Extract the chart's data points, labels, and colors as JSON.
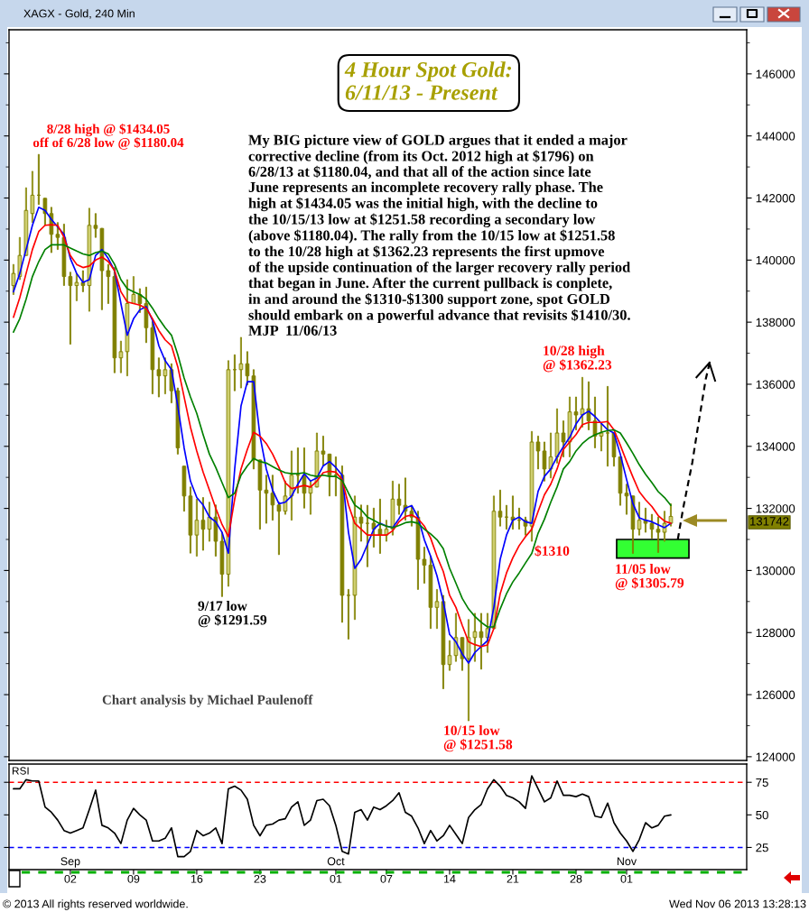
{
  "chart_data": [
    {
      "type": "candlestick",
      "title": "4 Hour Spot Gold:\n6/11/13 - Present",
      "subtitle": "XAGX - Gold, 240 Min",
      "categories": [
        null,
        null,
        null,
        null,
        null,
        null,
        null,
        null,
        null,
        "Sep",
        null,
        null,
        null,
        null,
        null,
        null,
        null,
        null,
        null,
        null,
        null,
        null,
        null,
        null,
        null,
        null,
        null,
        null,
        null,
        null,
        null,
        null,
        null,
        null,
        null,
        null,
        null,
        null,
        null,
        null,
        null,
        null,
        null,
        null,
        null,
        null,
        null,
        null,
        null,
        null,
        null,
        "Oct",
        null,
        null,
        null,
        null,
        null,
        null,
        null,
        null,
        null,
        null,
        null,
        null,
        null,
        null,
        null,
        null,
        null,
        null,
        null,
        null,
        null,
        null,
        null,
        null,
        null,
        null,
        null,
        null,
        null,
        null,
        null,
        null,
        null,
        null,
        null,
        null,
        null,
        null,
        null,
        null,
        null,
        null,
        null,
        null,
        null,
        "Nov",
        null,
        null,
        null,
        null,
        null,
        null,
        null,
        null,
        null,
        null,
        null,
        null,
        null,
        null,
        null,
        null,
        null,
        null,
        null
      ],
      "ohlc": [
        [
          139180,
          139860,
          138890,
          139570
        ],
        [
          139470,
          140730,
          139370,
          140150
        ],
        [
          140150,
          142330,
          140150,
          141600
        ],
        [
          141500,
          142860,
          141210,
          142090
        ],
        [
          142090,
          143405,
          141790,
          142090
        ],
        [
          141990,
          141990,
          141120,
          141500
        ],
        [
          141500,
          141700,
          140240,
          140830
        ],
        [
          140830,
          141210,
          140340,
          140730
        ],
        [
          140730,
          141160,
          139180,
          139470
        ],
        [
          139470,
          139610,
          137290,
          139180
        ],
        [
          139180,
          139570,
          138690,
          139280
        ],
        [
          139280,
          139660,
          138980,
          139180
        ],
        [
          139180,
          141670,
          138350,
          141120
        ],
        [
          141120,
          141500,
          140730,
          141020
        ],
        [
          141020,
          141020,
          138400,
          139660
        ],
        [
          139660,
          139860,
          138600,
          139470
        ],
        [
          139470,
          139760,
          136370,
          136850
        ],
        [
          136850,
          137390,
          136370,
          137050
        ],
        [
          137050,
          139370,
          136270,
          138600
        ],
        [
          138600,
          139470,
          138600,
          138890
        ],
        [
          138890,
          139080,
          138310,
          138600
        ],
        [
          138600,
          139130,
          137340,
          137820
        ],
        [
          137820,
          138020,
          135690,
          136470
        ],
        [
          136470,
          136850,
          135590,
          136270
        ],
        [
          136270,
          136850,
          135690,
          136470
        ],
        [
          136470,
          136660,
          135400,
          135790
        ],
        [
          135790,
          135880,
          133750,
          133950
        ],
        [
          133360,
          133360,
          131910,
          132400
        ],
        [
          132400,
          132690,
          130560,
          131140
        ],
        [
          131140,
          132300,
          130460,
          131620
        ],
        [
          131620,
          132350,
          130650,
          131330
        ],
        [
          131330,
          132200,
          130940,
          131720
        ],
        [
          131720,
          132110,
          130460,
          130940
        ],
        [
          130940,
          131230,
          129159,
          129880
        ],
        [
          129880,
          136760,
          129490,
          136470
        ],
        [
          136470,
          136950,
          135790,
          136470
        ],
        [
          136470,
          137510,
          135880,
          136660
        ],
        [
          136660,
          137050,
          135980,
          136270
        ],
        [
          136270,
          136470,
          133270,
          133560
        ],
        [
          133560,
          133560,
          131330,
          132590
        ],
        [
          132590,
          133070,
          131520,
          132490
        ],
        [
          132490,
          133070,
          131620,
          132110
        ],
        [
          132110,
          132200,
          130510,
          131910
        ],
        [
          131910,
          132880,
          131810,
          132400
        ],
        [
          132400,
          133850,
          131620,
          133070
        ],
        [
          133070,
          133950,
          132490,
          133070
        ],
        [
          133070,
          133950,
          132010,
          132490
        ],
        [
          132490,
          132880,
          131810,
          132690
        ],
        [
          132690,
          134430,
          132690,
          133850
        ],
        [
          133850,
          134330,
          133370,
          133750
        ],
        [
          133750,
          133750,
          132400,
          133070
        ],
        [
          133070,
          133660,
          132400,
          133070
        ],
        [
          133070,
          133370,
          128330,
          129200
        ],
        [
          129200,
          129390,
          127790,
          129200
        ],
        [
          129200,
          132400,
          128420,
          131720
        ],
        [
          131720,
          132110,
          130940,
          131520
        ],
        [
          131520,
          132100,
          130120,
          131520
        ],
        [
          131520,
          132010,
          130750,
          131330
        ],
        [
          131330,
          132300,
          130550,
          131140
        ],
        [
          131140,
          131620,
          130940,
          131330
        ],
        [
          131330,
          132880,
          131140,
          132300
        ],
        [
          132300,
          132780,
          131810,
          132100
        ],
        [
          132100,
          132980,
          131620,
          131910
        ],
        [
          131910,
          132100,
          131430,
          131720
        ],
        [
          131720,
          131910,
          129390,
          130360
        ],
        [
          130360,
          130750,
          129590,
          130170
        ],
        [
          130170,
          130460,
          128130,
          128810
        ],
        [
          128810,
          129390,
          128130,
          129000
        ],
        [
          129000,
          129200,
          126190,
          126970
        ],
        [
          126970,
          127740,
          126780,
          127260
        ],
        [
          127260,
          128620,
          127070,
          127840
        ],
        [
          127840,
          127840,
          126780,
          127160
        ],
        [
          127160,
          128420,
          125158,
          127840
        ],
        [
          127840,
          128620,
          127070,
          128030
        ],
        [
          128030,
          128620,
          126820,
          127840
        ],
        [
          127840,
          128620,
          127360,
          128130
        ],
        [
          128130,
          132400,
          128130,
          131910
        ],
        [
          131910,
          132590,
          131430,
          131720
        ],
        [
          131720,
          132100,
          131330,
          131720
        ],
        [
          131720,
          132400,
          131330,
          131620
        ],
        [
          131620,
          132010,
          131330,
          131620
        ],
        [
          131620,
          131720,
          131140,
          131430
        ],
        [
          131430,
          134480,
          130940,
          134140
        ],
        [
          134140,
          134330,
          133270,
          133850
        ],
        [
          133850,
          134140,
          132880,
          133270
        ],
        [
          133270,
          134430,
          132980,
          133660
        ],
        [
          133660,
          135210,
          133460,
          134430
        ],
        [
          134430,
          134820,
          133660,
          134140
        ],
        [
          134140,
          135590,
          133660,
          135110
        ],
        [
          135110,
          135590,
          134530,
          135010
        ],
        [
          135010,
          136223,
          134620,
          135210
        ],
        [
          135210,
          136080,
          134530,
          134820
        ],
        [
          134820,
          135590,
          133950,
          134330
        ],
        [
          134330,
          134720,
          133850,
          134430
        ],
        [
          134430,
          135930,
          133360,
          134430
        ],
        [
          134430,
          134430,
          133360,
          133660
        ],
        [
          133660,
          133660,
          132100,
          132490
        ],
        [
          132490,
          132780,
          131810,
          132400
        ],
        [
          132400,
          132400,
          130550,
          131330
        ],
        [
          131330,
          132200,
          131140,
          131620
        ],
        [
          131620,
          132010,
          131230,
          131520
        ],
        [
          131520,
          131810,
          131040,
          131330
        ],
        [
          131330,
          131720,
          130579,
          131230
        ],
        [
          131230,
          131910,
          130940,
          131520
        ],
        [
          131520,
          132150,
          131430,
          131742
        ],
        null,
        null,
        null,
        null,
        null,
        null,
        null,
        null,
        null,
        null,
        null,
        null
      ],
      "color": "#808000",
      "series": [
        {
          "type": "line",
          "color": "#0000ff",
          "values": [
            138980,
            139570,
            140340,
            141120,
            141700,
            141600,
            141310,
            141070,
            140830,
            140050,
            139570,
            139280,
            139370,
            140150,
            140340,
            140050,
            139660,
            138600,
            137580,
            138110,
            138400,
            138500,
            138060,
            137240,
            136760,
            136470,
            135300,
            133950,
            132880,
            132350,
            132110,
            131720,
            131570,
            131230,
            130560,
            133270,
            135300,
            136080,
            136080,
            134330,
            133270,
            132590,
            132150,
            132200,
            132400,
            132780,
            133120,
            132880,
            132980,
            133370,
            133510,
            133320,
            133070,
            131230,
            130070,
            130360,
            130840,
            131330,
            131520,
            131430,
            131380,
            131670,
            132010,
            132090,
            131720,
            130990,
            130460,
            129830,
            129000,
            127940,
            127700,
            127310,
            127020,
            127360,
            127550,
            127740,
            128810,
            130360,
            131140,
            131620,
            131720,
            131570,
            131520,
            132550,
            133030,
            133270,
            133660,
            133990,
            134290,
            134720,
            135010,
            135130,
            134960,
            134740,
            134530,
            134430,
            133750,
            132930,
            132150,
            131700,
            131620,
            131570,
            131470,
            131380,
            131520,
            null,
            null,
            null,
            null,
            null,
            null,
            null,
            null,
            null,
            null,
            null,
            null
          ]
        },
        {
          "type": "line",
          "color": "#ff0000",
          "values": [
            138160,
            138790,
            139570,
            140340,
            140920,
            141120,
            141140,
            141120,
            140730,
            140150,
            139860,
            139760,
            139810,
            140000,
            140100,
            139950,
            139660,
            138980,
            138650,
            138600,
            138550,
            138450,
            138110,
            137730,
            137430,
            137240,
            136560,
            135590,
            134620,
            133850,
            133170,
            132590,
            132010,
            131480,
            131090,
            132300,
            133270,
            133900,
            134450,
            134330,
            134090,
            133750,
            133320,
            132830,
            132640,
            132690,
            132740,
            132690,
            132880,
            133150,
            133200,
            133170,
            132930,
            132110,
            131520,
            131330,
            131140,
            131140,
            131140,
            131140,
            131280,
            131570,
            131740,
            131790,
            131670,
            131430,
            131040,
            130460,
            129970,
            129200,
            128810,
            128230,
            127700,
            127610,
            127550,
            127600,
            128130,
            129250,
            129920,
            130410,
            130800,
            131090,
            131330,
            131900,
            132440,
            132780,
            133270,
            133900,
            134140,
            134380,
            134700,
            134770,
            134770,
            134770,
            134800,
            134530,
            134040,
            133510,
            133010,
            132540,
            132280,
            132060,
            131770,
            131590,
            131520,
            null,
            null,
            null,
            null,
            null,
            null,
            null,
            null,
            null,
            null,
            null,
            null
          ]
        },
        {
          "type": "line",
          "color": "#008000",
          "values": [
            137680,
            138110,
            138740,
            139470,
            139950,
            140340,
            140490,
            140490,
            140490,
            140390,
            140290,
            140200,
            140150,
            140240,
            140290,
            140200,
            139860,
            139370,
            139080,
            138980,
            138890,
            138740,
            138450,
            138110,
            137820,
            137580,
            136950,
            136200,
            135590,
            135060,
            134380,
            133750,
            133320,
            132830,
            132350,
            132490,
            133070,
            133370,
            133610,
            133510,
            133460,
            133350,
            133240,
            133150,
            133120,
            133120,
            133150,
            133070,
            133030,
            133070,
            133030,
            133030,
            132900,
            132490,
            132110,
            131960,
            131720,
            131620,
            131500,
            131430,
            131380,
            131450,
            131540,
            131570,
            131520,
            131330,
            131180,
            130990,
            130700,
            130070,
            129590,
            129100,
            128760,
            128520,
            128330,
            128180,
            128180,
            128760,
            129250,
            129630,
            129920,
            130240,
            130550,
            131200,
            131650,
            132200,
            132690,
            133270,
            133510,
            133850,
            134090,
            134260,
            134370,
            134450,
            134510,
            134530,
            134430,
            134110,
            133770,
            133410,
            133100,
            132830,
            132540,
            132350,
            132100,
            null,
            null,
            null,
            null,
            null,
            null,
            null,
            null,
            null,
            null,
            null,
            null
          ]
        }
      ],
      "ylim": [
        123880,
        147420
      ],
      "yticks": [
        124000,
        126000,
        128000,
        130000,
        132000,
        134000,
        136000,
        138000,
        140000,
        142000,
        144000,
        146000
      ],
      "bands": [
        {
          "axis": "y",
          "from": 130400,
          "to": 131000,
          "color": "#33ff33"
        }
      ],
      "annotations": [
        "8/28 high @ $1434.05\noff of 6/28 low @ $1180.04",
        "My BIG picture view of GOLD argues that it ended a major\ncorrective decline (from its Oct. 2012 high at $1796) on\n6/28/13 at $1180.04, and that all of the action since late\nJune represents an incomplete recovery rally phase. The\nhigh at $1434.05 was the initial high, with the decline to\nthe 10/15/13 low at $1251.58 recording a secondary low\n(above $1180.04). The rally from the 10/15 low at $1251.58\nto the 10/28 high at $1362.23 represents the first upmove\nof the upside continuation of the larger recovery rally period\nthat began in June. After the current pullback is conplete,\nin and around the $1310-$1300 support zone, spot GOLD\nshould embark on a powerful advance that revisits $1410/30.\nMJP  11/06/13",
        "10/28 high\n@ $1362.23",
        "$1310",
        "11/05 low\n@ $1305.79",
        "9/17 low\n@ $1291.59",
        "10/15 low\n@ $1251.58",
        "Chart analysis by Michael Paulenoff",
        "131742",
        "© 2013 All rights reserved worldwide.",
        "Wed Nov 06 2013 13:28:13"
      ]
    },
    {
      "type": "line",
      "title": "RSI",
      "categories": [
        null,
        null,
        null,
        null,
        null,
        null,
        null,
        null,
        null,
        "02",
        null,
        null,
        null,
        null,
        null,
        null,
        null,
        null,
        null,
        "09",
        null,
        null,
        null,
        null,
        null,
        null,
        null,
        null,
        null,
        "16",
        null,
        null,
        null,
        null,
        null,
        null,
        null,
        null,
        null,
        "23",
        null,
        null,
        null,
        null,
        null,
        null,
        null,
        null,
        null,
        null,
        null,
        "01",
        null,
        null,
        null,
        null,
        null,
        null,
        null,
        "07",
        null,
        null,
        null,
        null,
        null,
        null,
        null,
        null,
        null,
        "14",
        null,
        null,
        null,
        null,
        null,
        null,
        null,
        null,
        null,
        "21",
        null,
        null,
        null,
        null,
        null,
        null,
        null,
        null,
        null,
        "28",
        null,
        null,
        null,
        null,
        null,
        null,
        null,
        "01",
        null,
        null,
        null,
        null,
        null,
        null,
        null,
        null,
        null,
        null,
        null,
        null,
        null,
        null,
        null,
        null,
        null,
        null,
        null
      ],
      "series": [
        {
          "color": "#000000",
          "values": [
            70,
            70,
            77,
            76,
            76,
            56,
            52,
            46,
            38,
            36,
            38,
            40,
            54,
            69,
            42,
            40,
            36,
            28,
            46,
            55,
            50,
            46,
            30,
            30,
            32,
            40,
            18,
            18,
            22,
            38,
            34,
            36,
            40,
            28,
            70,
            72,
            69,
            62,
            42,
            34,
            42,
            43,
            46,
            47,
            56,
            60,
            42,
            46,
            61,
            62,
            57,
            42,
            22,
            20,
            52,
            54,
            46,
            56,
            54,
            57,
            61,
            67,
            52,
            49,
            40,
            28,
            38,
            30,
            34,
            42,
            35,
            28,
            48,
            54,
            58,
            70,
            77,
            72,
            65,
            63,
            60,
            55,
            80,
            70,
            60,
            63,
            76,
            65,
            65,
            64,
            66,
            64,
            49,
            48,
            59,
            44,
            36,
            30,
            22,
            31,
            44,
            40,
            42,
            49,
            50,
            null,
            null,
            null,
            null,
            null,
            null,
            null,
            null,
            null,
            null,
            null,
            null
          ]
        }
      ],
      "ylim": [
        8,
        89
      ],
      "yticks": [
        25,
        50,
        75
      ],
      "ref_lines": [
        {
          "axis": "y",
          "value": 75,
          "color": "#ff0000",
          "line_style": "dashed"
        },
        {
          "axis": "y",
          "value": 25,
          "color": "#0000ff",
          "line_style": "dashed"
        }
      ]
    }
  ]
}
